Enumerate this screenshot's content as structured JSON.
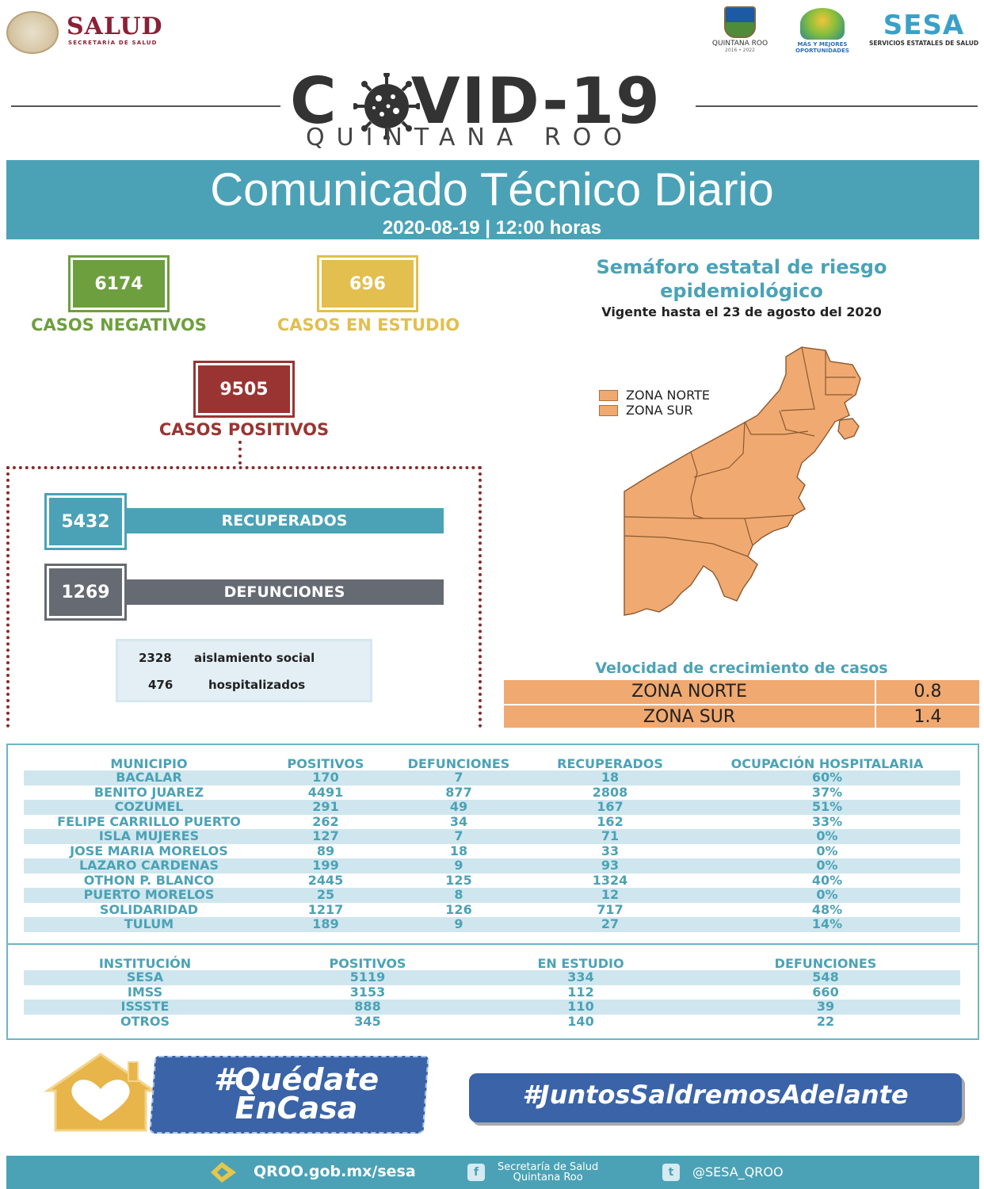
{
  "header": {
    "salud_title": "SALUD",
    "salud_subtitle": "SECRETARÍA DE SALUD",
    "qroo_logo_name": "QUINTANA ROO",
    "qroo_logo_sub": "2016 • 2022",
    "oport_logo_text": "MÁS Y MEJORES OPORTUNIDADES",
    "sesa_title": "SESA",
    "sesa_subtitle": "SERVICIOS ESTATALES DE SALUD"
  },
  "title": {
    "covid_left": "C",
    "covid_right": "VID-19",
    "state": "QUINTANA ROO"
  },
  "banner": {
    "title": "Comunicado Técnico Diario",
    "date": "2020-08-19 | 12:00 horas"
  },
  "stats": {
    "negativos_value": "6174",
    "negativos_label": "CASOS NEGATIVOS",
    "estudio_value": "696",
    "estudio_label": "CASOS EN ESTUDIO",
    "positivos_value": "9505",
    "positivos_label": "CASOS POSITIVOS",
    "recuperados_value": "5432",
    "recuperados_label": "RECUPERADOS",
    "defunciones_value": "1269",
    "defunciones_label": "DEFUNCIONES",
    "aislamiento_value": "2328",
    "aislamiento_label": "aislamiento social",
    "hospitalizados_value": "476",
    "hospitalizados_label": "hospitalizados"
  },
  "semaforo": {
    "title_line1": "Semáforo estatal de riesgo",
    "title_line2": "epidemiológico",
    "valid_until": "Vigente hasta el 23 de agosto del 2020",
    "legend": [
      "ZONA NORTE",
      "ZONA SUR"
    ]
  },
  "velocidad": {
    "title": "Velocidad de crecimiento de casos",
    "rows": [
      {
        "zone": "ZONA NORTE",
        "value": "0.8"
      },
      {
        "zone": "ZONA SUR",
        "value": "1.4"
      }
    ]
  },
  "municipios": {
    "headers": [
      "MUNICIPIO",
      "POSITIVOS",
      "DEFUNCIONES",
      "RECUPERADOS",
      "OCUPACIÓN HOSPITALARIA"
    ],
    "rows": [
      [
        "BACALAR",
        "170",
        "7",
        "18",
        "60%"
      ],
      [
        "BENITO JUAREZ",
        "4491",
        "877",
        "2808",
        "37%"
      ],
      [
        "COZUMEL",
        "291",
        "49",
        "167",
        "51%"
      ],
      [
        "FELIPE CARRILLO PUERTO",
        "262",
        "34",
        "162",
        "33%"
      ],
      [
        "ISLA MUJERES",
        "127",
        "7",
        "71",
        "0%"
      ],
      [
        "JOSE MARIA MORELOS",
        "89",
        "18",
        "33",
        "0%"
      ],
      [
        "LAZARO CARDENAS",
        "199",
        "9",
        "93",
        "0%"
      ],
      [
        "OTHON P. BLANCO",
        "2445",
        "125",
        "1324",
        "40%"
      ],
      [
        "PUERTO MORELOS",
        "25",
        "8",
        "12",
        "0%"
      ],
      [
        "SOLIDARIDAD",
        "1217",
        "126",
        "717",
        "48%"
      ],
      [
        "TULUM",
        "189",
        "9",
        "27",
        "14%"
      ]
    ]
  },
  "instituciones": {
    "headers": [
      "INSTITUCIÓN",
      "POSITIVOS",
      "EN ESTUDIO",
      "DEFUNCIONES"
    ],
    "rows": [
      [
        "SESA",
        "5119",
        "334",
        "548"
      ],
      [
        "IMSS",
        "3153",
        "112",
        "660"
      ],
      [
        "ISSSTE",
        "888",
        "110",
        "39"
      ],
      [
        "OTROS",
        "345",
        "140",
        "22"
      ]
    ]
  },
  "hashtags": {
    "quedate_line1": "#Quédate",
    "quedate_line2": "EnCasa",
    "juntos": "#JuntosSaldremosAdelante"
  },
  "footer": {
    "website": "QROO.gob.mx/sesa",
    "facebook_line1": "Secretaría de Salud",
    "facebook_line2": "Quintana Roo",
    "twitter": "@SESA_QROO"
  },
  "colors": {
    "teal": "#4ba2b6",
    "green": "#6e9f3e",
    "yellow": "#e2bf4e",
    "maroon": "#9a3432",
    "gray": "#666a72",
    "orange": "#f0a970"
  }
}
